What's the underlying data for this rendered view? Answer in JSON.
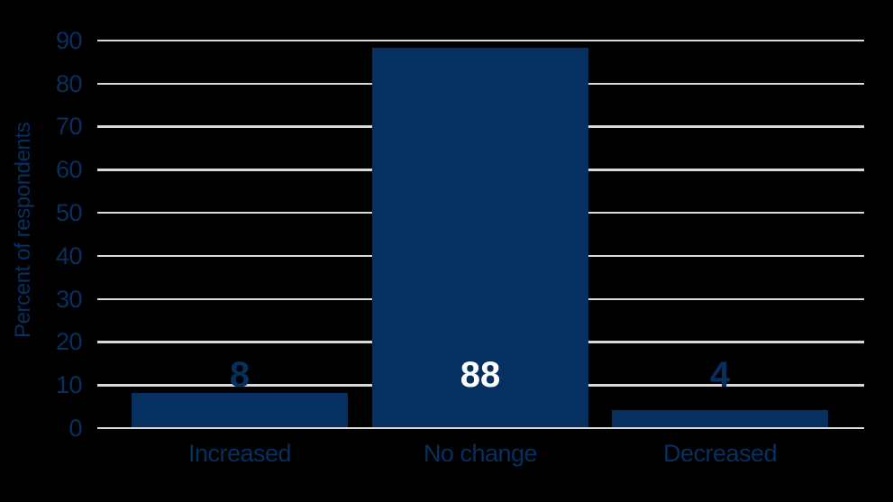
{
  "chart_data": {
    "type": "bar",
    "title": "",
    "xlabel": "",
    "ylabel": "Percent of respondents",
    "categories": [
      "Increased",
      "No change",
      "Decreased"
    ],
    "values": [
      8,
      88,
      4
    ],
    "value_labels": [
      "8",
      "88",
      "4"
    ],
    "yticks": [
      0,
      10,
      20,
      30,
      40,
      50,
      60,
      70,
      80,
      90
    ],
    "ylim": [
      0,
      90
    ],
    "grid": "horizontal-major",
    "legend": "none",
    "colors": {
      "background": "#000000",
      "bar": "#06305f",
      "text": "#06305f",
      "gridline": "#d9d9d9",
      "value_label_outside": "#06305f",
      "value_label_inside": "#ffffff"
    },
    "value_label_placement": [
      "outside-above",
      "inside",
      "outside-above"
    ]
  }
}
